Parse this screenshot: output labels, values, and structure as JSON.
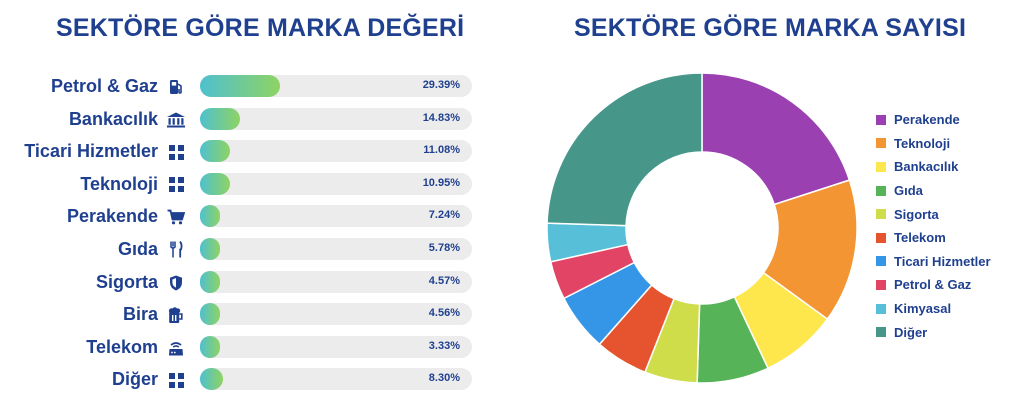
{
  "chart_data": [
    {
      "type": "bar",
      "orientation": "horizontal",
      "title": "SEKTÖRE GÖRE MARKA DEĞERİ",
      "max_value": 100,
      "categories": [
        "Petrol & Gaz",
        "Bankacılık",
        "Ticari Hizmetler",
        "Teknoloji",
        "Perakende",
        "Gıda",
        "Sigorta",
        "Bira",
        "Telekom",
        "Diğer"
      ],
      "icons": [
        "fuel-pump-icon",
        "bank-building-icon",
        "grid-icon",
        "grid-icon",
        "shopping-cart-icon",
        "fork-knife-icon",
        "shield-icon",
        "beer-mug-icon",
        "router-icon",
        "grid-icon"
      ],
      "values": [
        29.39,
        14.83,
        11.08,
        10.95,
        7.24,
        5.78,
        4.57,
        4.56,
        3.33,
        8.3
      ],
      "value_labels": [
        "29.39%",
        "14.83%",
        "11.08%",
        "10.95%",
        "7.24%",
        "5.78%",
        "4.57%",
        "4.56%",
        "3.33%",
        "8.30%"
      ],
      "bar_gradient": [
        "#4fc0cf",
        "#8ed363"
      ],
      "track_color": "#ececec"
    },
    {
      "type": "pie",
      "variant": "donut",
      "title": "SEKTÖRE GÖRE MARKA SAYISI",
      "legend_position": "right",
      "categories": [
        "Perakende",
        "Teknoloji",
        "Bankacılık",
        "Gıda",
        "Sigorta",
        "Telekom",
        "Ticari Hizmetler",
        "Petrol & Gaz",
        "Kimyasal",
        "Diğer"
      ],
      "values": [
        20,
        15,
        8,
        7.5,
        5.5,
        5.5,
        6,
        4,
        4,
        24.5
      ],
      "colors": [
        "#9b40b0",
        "#f29532",
        "#fde74c",
        "#56b357",
        "#cfdd4b",
        "#e5532f",
        "#3596e8",
        "#e24466",
        "#57c0d8",
        "#46978a"
      ]
    }
  ],
  "text_color": "#1f3f8f"
}
